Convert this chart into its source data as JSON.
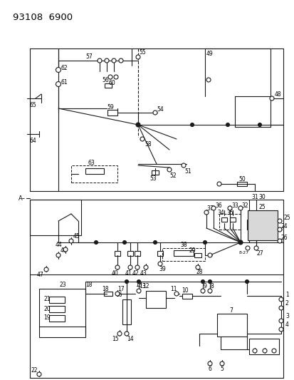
{
  "title": "93108  6900",
  "bg_color": "#ffffff",
  "lc": "#1a1a1a",
  "lw": 0.8,
  "fw": 4.14,
  "fh": 5.33,
  "dpi": 100
}
